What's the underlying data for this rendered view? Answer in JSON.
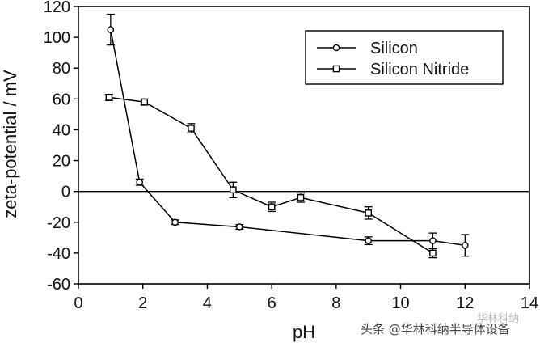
{
  "chart_data": {
    "type": "line",
    "xlabel": "pH",
    "ylabel": "zeta-potential / mV",
    "xlim": [
      0,
      14
    ],
    "ylim": [
      -60,
      120
    ],
    "x_ticks": [
      "0",
      "2",
      "4",
      "6",
      "8",
      "10",
      "12",
      "14"
    ],
    "y_ticks": [
      "120",
      "100",
      "80",
      "60",
      "40",
      "20",
      "0",
      "-20",
      "-40",
      "-60"
    ],
    "zero_line": true,
    "grid": false,
    "legend_position": "top-right",
    "series": [
      {
        "name": "Silicon",
        "marker": "circle",
        "points": [
          {
            "x": 1.0,
            "y": 105,
            "err": 10
          },
          {
            "x": 1.9,
            "y": 6,
            "err": 2
          },
          {
            "x": 3.0,
            "y": -20,
            "err": 1.5
          },
          {
            "x": 5.0,
            "y": -23,
            "err": 1.5
          },
          {
            "x": 9.0,
            "y": -32,
            "err": 2.5
          },
          {
            "x": 11.0,
            "y": -32,
            "err": 5
          },
          {
            "x": 12.0,
            "y": -35,
            "err": 7
          }
        ]
      },
      {
        "name": "Silicon Nitride",
        "marker": "square",
        "points": [
          {
            "x": 0.95,
            "y": 61,
            "err": 2
          },
          {
            "x": 2.05,
            "y": 58,
            "err": 2
          },
          {
            "x": 3.5,
            "y": 41,
            "err": 3
          },
          {
            "x": 4.8,
            "y": 1,
            "err": 5
          },
          {
            "x": 6.0,
            "y": -10,
            "err": 3
          },
          {
            "x": 6.9,
            "y": -4,
            "err": 3
          },
          {
            "x": 9.0,
            "y": -14,
            "err": 4
          },
          {
            "x": 11.0,
            "y": -40,
            "err": 3
          }
        ]
      }
    ]
  },
  "watermark": {
    "main": "头条 @华林科纳半导体设备",
    "faint": "华林科纳"
  }
}
